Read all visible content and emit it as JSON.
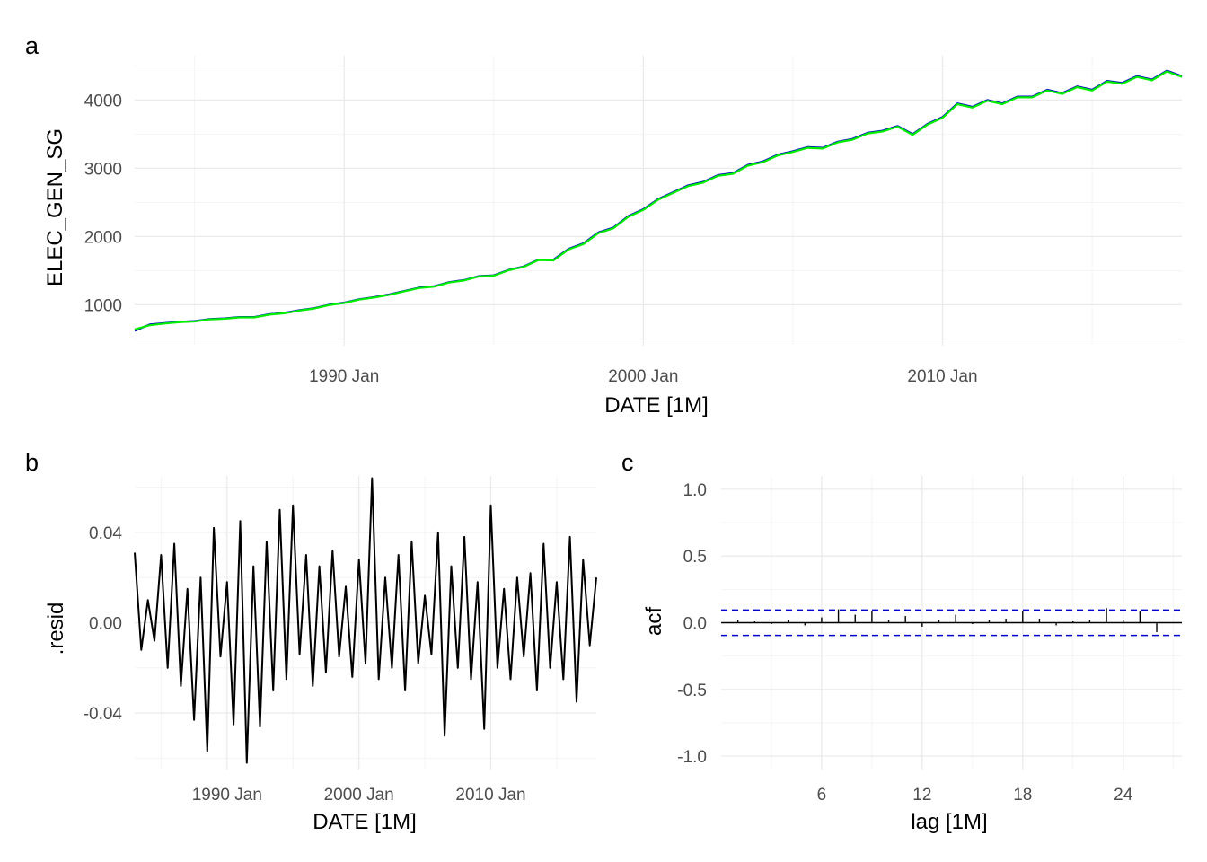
{
  "chart_data": [
    {
      "panel": "a",
      "type": "line",
      "xlabel": "DATE [1M]",
      "ylabel": "ELEC_GEN_SG",
      "x_range": [
        "1983-01",
        "2018-01"
      ],
      "ylim": [
        400,
        4650
      ],
      "x_ticks": [
        "1990 Jan",
        "2000 Jan",
        "2010 Jan"
      ],
      "y_ticks": [
        1000,
        2000,
        3000,
        4000
      ],
      "grid": true,
      "series_colors": [
        "#0000cc",
        "#00ee00"
      ],
      "x": [
        1983.0,
        1983.5,
        1984.0,
        1984.5,
        1985.0,
        1985.5,
        1986.0,
        1986.5,
        1987.0,
        1987.5,
        1988.0,
        1988.5,
        1989.0,
        1989.5,
        1990.0,
        1990.5,
        1991.0,
        1991.5,
        1992.0,
        1992.5,
        1993.0,
        1993.5,
        1994.0,
        1994.5,
        1995.0,
        1995.5,
        1996.0,
        1996.5,
        1997.0,
        1997.5,
        1998.0,
        1998.5,
        1999.0,
        1999.5,
        2000.0,
        2000.5,
        2001.0,
        2001.5,
        2002.0,
        2002.5,
        2003.0,
        2003.5,
        2004.0,
        2004.5,
        2005.0,
        2005.5,
        2006.0,
        2006.5,
        2007.0,
        2007.5,
        2008.0,
        2008.5,
        2009.0,
        2009.5,
        2010.0,
        2010.5,
        2011.0,
        2011.5,
        2012.0,
        2012.5,
        2013.0,
        2013.5,
        2014.0,
        2014.5,
        2015.0,
        2015.5,
        2016.0,
        2016.5,
        2017.0,
        2017.5,
        2018.0
      ],
      "series": [
        {
          "values": [
            620,
            710,
            730,
            750,
            760,
            790,
            800,
            820,
            820,
            860,
            880,
            920,
            950,
            1000,
            1030,
            1080,
            1110,
            1150,
            1200,
            1250,
            1270,
            1330,
            1360,
            1420,
            1430,
            1510,
            1560,
            1660,
            1660,
            1820,
            1900,
            2060,
            2130,
            2300,
            2400,
            2550,
            2650,
            2750,
            2800,
            2900,
            2930,
            3050,
            3100,
            3200,
            3250,
            3310,
            3300,
            3390,
            3430,
            3520,
            3550,
            3620,
            3500,
            3650,
            3750,
            3950,
            3900,
            4000,
            3950,
            4050,
            4050,
            4150,
            4100,
            4200,
            4150,
            4280,
            4250,
            4350,
            4300,
            4430,
            4350
          ]
        },
        {
          "values": [
            640,
            700,
            725,
            745,
            755,
            785,
            795,
            815,
            815,
            855,
            875,
            915,
            945,
            995,
            1025,
            1075,
            1105,
            1145,
            1195,
            1245,
            1265,
            1325,
            1355,
            1415,
            1425,
            1505,
            1555,
            1655,
            1650,
            1810,
            1890,
            2050,
            2120,
            2290,
            2390,
            2540,
            2640,
            2740,
            2790,
            2890,
            2920,
            3040,
            3090,
            3190,
            3240,
            3300,
            3290,
            3380,
            3420,
            3510,
            3540,
            3610,
            3490,
            3640,
            3740,
            3940,
            3890,
            3990,
            3940,
            4040,
            4040,
            4140,
            4090,
            4190,
            4140,
            4270,
            4240,
            4340,
            4290,
            4420,
            4340
          ]
        }
      ]
    },
    {
      "panel": "b",
      "type": "line",
      "xlabel": "DATE [1M]",
      "ylabel": ".resid",
      "x_range": [
        "1983-01",
        "2018-01"
      ],
      "ylim": [
        -0.065,
        0.065
      ],
      "x_ticks": [
        "1990 Jan",
        "2000 Jan",
        "2010 Jan"
      ],
      "y_ticks": [
        "-0.04",
        "0.00",
        "0.04"
      ],
      "grid": true,
      "series_colors": [
        "#000000"
      ],
      "x": [
        1983.0,
        1983.5,
        1984.0,
        1984.5,
        1985.0,
        1985.5,
        1986.0,
        1986.5,
        1987.0,
        1987.5,
        1988.0,
        1988.5,
        1989.0,
        1989.5,
        1990.0,
        1990.5,
        1991.0,
        1991.5,
        1992.0,
        1992.5,
        1993.0,
        1993.5,
        1994.0,
        1994.5,
        1995.0,
        1995.5,
        1996.0,
        1996.5,
        1997.0,
        1997.5,
        1998.0,
        1998.5,
        1999.0,
        1999.5,
        2000.0,
        2000.5,
        2001.0,
        2001.5,
        2002.0,
        2002.5,
        2003.0,
        2003.5,
        2004.0,
        2004.5,
        2005.0,
        2005.5,
        2006.0,
        2006.5,
        2007.0,
        2007.5,
        2008.0,
        2008.5,
        2009.0,
        2009.5,
        2010.0,
        2010.5,
        2011.0,
        2011.5,
        2012.0,
        2012.5,
        2013.0,
        2013.5,
        2014.0,
        2014.5,
        2015.0,
        2015.5,
        2016.0,
        2016.5,
        2017.0,
        2017.5,
        2018.0
      ],
      "series": [
        {
          "values": [
            0.031,
            -0.012,
            0.01,
            -0.008,
            0.03,
            -0.02,
            0.035,
            -0.028,
            0.015,
            -0.043,
            0.02,
            -0.057,
            0.042,
            -0.015,
            0.018,
            -0.045,
            0.045,
            -0.062,
            0.025,
            -0.046,
            0.036,
            -0.03,
            0.05,
            -0.025,
            0.052,
            -0.014,
            0.03,
            -0.028,
            0.025,
            -0.022,
            0.032,
            -0.015,
            0.016,
            -0.024,
            0.028,
            -0.018,
            0.064,
            -0.025,
            0.02,
            -0.02,
            0.03,
            -0.03,
            0.036,
            -0.018,
            0.012,
            -0.014,
            0.04,
            -0.05,
            0.025,
            -0.02,
            0.038,
            -0.025,
            0.018,
            -0.047,
            0.052,
            -0.02,
            0.015,
            -0.025,
            0.02,
            -0.015,
            0.022,
            -0.03,
            0.035,
            -0.02,
            0.018,
            -0.025,
            0.038,
            -0.035,
            0.028,
            -0.01,
            0.02
          ]
        }
      ]
    },
    {
      "panel": "c",
      "type": "bar",
      "xlabel": "lag [1M]",
      "ylabel": "acf",
      "xlim": [
        0,
        27.5
      ],
      "ylim": [
        -1.1,
        1.1
      ],
      "x_ticks": [
        6,
        12,
        18,
        24
      ],
      "y_ticks": [
        "-1.0",
        "-0.5",
        "0.0",
        "0.5",
        "1.0"
      ],
      "grid": true,
      "confidence_bound": 0.095,
      "bound_color": "#0000cc",
      "lags": [
        1,
        2,
        3,
        4,
        5,
        6,
        7,
        8,
        9,
        10,
        11,
        12,
        13,
        14,
        15,
        16,
        17,
        18,
        19,
        20,
        21,
        22,
        23,
        24,
        25,
        26
      ],
      "values": [
        0.02,
        0.01,
        -0.01,
        0.02,
        -0.02,
        0.04,
        0.1,
        0.06,
        0.09,
        0.02,
        0.05,
        -0.03,
        0.02,
        0.06,
        -0.01,
        0.02,
        0.03,
        0.09,
        0.03,
        -0.02,
        0.01,
        0.02,
        0.11,
        0.02,
        0.09,
        -0.07
      ]
    }
  ]
}
